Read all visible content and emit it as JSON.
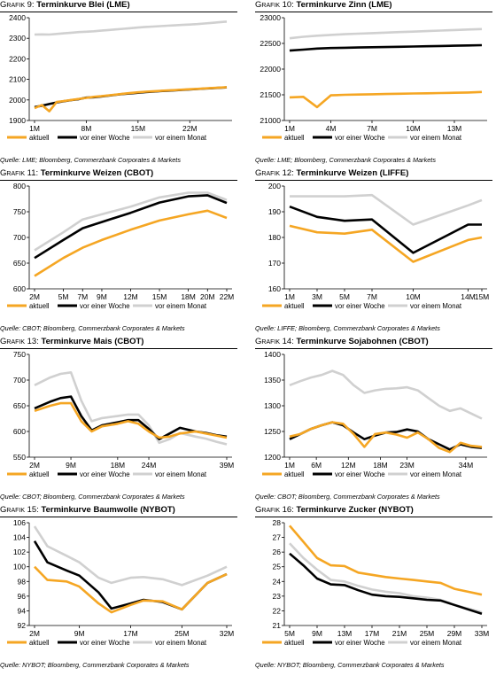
{
  "panels": [
    {
      "title_prefix": "Grafik 9:",
      "title_main": "Terminkurve Blei (LME)",
      "source": "Quelle: LME; Bloomberg, Commerzbank Corporates & Markets",
      "colors": {
        "aktuell": "#f5a623",
        "woche": "#000000",
        "monat": "#d0d0d0"
      },
      "chart_data": {
        "type": "line",
        "x": [
          1,
          2,
          3,
          4,
          5,
          6,
          7,
          8,
          9,
          10,
          11,
          12,
          13,
          14,
          15,
          16,
          17,
          18,
          19,
          20,
          21,
          22,
          23,
          24,
          25,
          26,
          27
        ],
        "x_ticks": [
          1,
          8,
          15,
          22
        ],
        "x_tick_labels": [
          "1M",
          "8M",
          "15M",
          "22M"
        ],
        "ylim": [
          1900,
          2400
        ],
        "y_ticks": [
          1900,
          2000,
          2100,
          2200,
          2300,
          2400
        ],
        "series": [
          {
            "name": "aktuell",
            "values": [
              1960,
              1975,
              1945,
              1990,
              1995,
              2000,
              2005,
              2010,
              2015,
              2018,
              2022,
              2026,
              2030,
              2034,
              2037,
              2040,
              2042,
              2044,
              2046,
              2048,
              2050,
              2052,
              2054,
              2056,
              2058,
              2060,
              2062
            ]
          },
          {
            "name": "vor einer Woche",
            "values": [
              1965,
              1972,
              1980,
              1988,
              1994,
              1999,
              2004,
              2011,
              2013,
              2017,
              2021,
              2025,
              2029,
              2032,
              2035,
              2038,
              2040,
              2043,
              2045,
              2047,
              2049,
              2051,
              2053,
              2055,
              2057,
              2059,
              2061
            ]
          },
          {
            "name": "vor einem Monat",
            "values": [
              2318,
              2319,
              2318,
              2321,
              2324,
              2327,
              2330,
              2332,
              2334,
              2337,
              2340,
              2343,
              2346,
              2349,
              2352,
              2355,
              2357,
              2359,
              2361,
              2363,
              2365,
              2367,
              2369,
              2372,
              2375,
              2378,
              2381
            ]
          }
        ]
      }
    },
    {
      "title_prefix": "Grafik 10:",
      "title_main": "Terminkurve Zinn (LME)",
      "source": "Quelle: LME; Bloomberg, Commerzbank Corporates & Markets",
      "colors": {
        "aktuell": "#f5a623",
        "woche": "#000000",
        "monat": "#d0d0d0"
      },
      "chart_data": {
        "type": "line",
        "x": [
          1,
          2,
          3,
          4,
          5,
          6,
          7,
          8,
          9,
          10,
          11,
          12,
          13,
          14,
          15
        ],
        "x_ticks": [
          1,
          4,
          7,
          10,
          13
        ],
        "x_tick_labels": [
          "1M",
          "4M",
          "7M",
          "10M",
          "13M"
        ],
        "ylim": [
          21000,
          23000
        ],
        "y_ticks": [
          21000,
          21500,
          22000,
          22500,
          23000
        ],
        "series": [
          {
            "name": "aktuell",
            "values": [
              21450,
              21460,
              21260,
              21490,
              21500,
              21505,
              21510,
              21515,
              21520,
              21525,
              21530,
              21535,
              21540,
              21545,
              21555
            ]
          },
          {
            "name": "vor einer Woche",
            "values": [
              22360,
              22380,
              22400,
              22410,
              22415,
              22420,
              22425,
              22430,
              22435,
              22440,
              22445,
              22450,
              22455,
              22460,
              22465
            ]
          },
          {
            "name": "vor einem Monat",
            "values": [
              22600,
              22630,
              22650,
              22665,
              22680,
              22690,
              22700,
              22710,
              22720,
              22730,
              22740,
              22750,
              22760,
              22770,
              22780
            ]
          }
        ]
      }
    },
    {
      "title_prefix": "Grafik 11:",
      "title_main": "Terminkurve Weizen (CBOT)",
      "source": "Quelle: CBOT; Bloomberg, Commerzbank Corporates & Markets",
      "colors": {
        "aktuell": "#f5a623",
        "woche": "#000000",
        "monat": "#d0d0d0"
      },
      "chart_data": {
        "type": "line",
        "x": [
          2,
          5,
          7,
          9,
          12,
          15,
          18,
          20,
          22
        ],
        "x_ticks": [
          2,
          5,
          7,
          9,
          12,
          15,
          18,
          20,
          22
        ],
        "x_tick_labels": [
          "2M",
          "5M",
          "7M",
          "9M",
          "12M",
          "15M",
          "18M",
          "20M",
          "22M"
        ],
        "ylim": [
          600,
          800
        ],
        "y_ticks": [
          600,
          650,
          700,
          750,
          800
        ],
        "series": [
          {
            "name": "aktuell",
            "values": [
              625,
              660,
              680,
              695,
              715,
              733,
              745,
              752,
              738
            ]
          },
          {
            "name": "vor einer Woche",
            "values": [
              660,
              695,
              718,
              730,
              748,
              768,
              780,
              782,
              767
            ]
          },
          {
            "name": "vor einem Monat",
            "values": [
              675,
              710,
              735,
              745,
              760,
              778,
              787,
              787,
              773
            ]
          }
        ]
      }
    },
    {
      "title_prefix": "Grafik 12:",
      "title_main": "Terminkurve Weizen (LIFFE)",
      "source": "Quelle: LIFFE; Bloomberg, Commerzbank Corporates & Markets",
      "colors": {
        "aktuell": "#f5a623",
        "woche": "#000000",
        "monat": "#d0d0d0"
      },
      "chart_data": {
        "type": "line",
        "x": [
          1,
          3,
          5,
          7,
          10,
          14,
          15
        ],
        "x_ticks": [
          1,
          3,
          5,
          7,
          10,
          14,
          15
        ],
        "x_tick_labels": [
          "1M",
          "3M",
          "5M",
          "7M",
          "10M",
          "14M",
          "15M"
        ],
        "ylim": [
          160,
          200
        ],
        "y_ticks": [
          160,
          170,
          180,
          190,
          200
        ],
        "series": [
          {
            "name": "aktuell",
            "values": [
              184.5,
              182,
              181.5,
              183,
              170.5,
              179,
              180
            ]
          },
          {
            "name": "vor einer Woche",
            "values": [
              192,
              188,
              186.5,
              187,
              174,
              185,
              185
            ]
          },
          {
            "name": "vor einem Monat",
            "values": [
              196,
              196,
              196,
              196.5,
              185,
              192.5,
              194.5
            ]
          }
        ]
      }
    },
    {
      "title_prefix": "Grafik 13:",
      "title_main": "Terminkurve Mais (CBOT)",
      "source": "Quelle: CBOT; Bloomberg, Commerzbank Corporates & Markets",
      "colors": {
        "aktuell": "#f5a623",
        "woche": "#000000",
        "monat": "#d0d0d0"
      },
      "chart_data": {
        "type": "line",
        "x": [
          2,
          5,
          7,
          9,
          11,
          13,
          15,
          18,
          20,
          22,
          24,
          26,
          28,
          30,
          33,
          35,
          37,
          39
        ],
        "x_ticks": [
          2,
          9,
          18,
          24,
          39
        ],
        "x_tick_labels": [
          "2M",
          "9M",
          "18M",
          "24M",
          "39M"
        ],
        "ylim": [
          550,
          750
        ],
        "y_ticks": [
          550,
          600,
          650,
          700,
          750
        ],
        "series": [
          {
            "name": "aktuell",
            "values": [
              640,
              650,
              655,
              655,
              620,
              600,
              610,
              615,
              620,
              615,
              600,
              588,
              590,
              596,
              600,
              596,
              592,
              588
            ]
          },
          {
            "name": "vor einer Woche",
            "values": [
              645,
              658,
              665,
              668,
              630,
              602,
              612,
              618,
              622,
              622,
              605,
              585,
              596,
              607,
              600,
              597,
              593,
              590
            ]
          },
          {
            "name": "vor einem Monat",
            "values": [
              690,
              705,
              712,
              715,
              660,
              620,
              626,
              630,
              633,
              633,
              612,
              578,
              585,
              597,
              590,
              586,
              580,
              575
            ]
          }
        ]
      }
    },
    {
      "title_prefix": "Grafik 14:",
      "title_main": "Terminkurve Sojabohnen (CBOT)",
      "source": "Quelle: CBOT; Bloomberg, Commerzbank Corporates & Markets",
      "colors": {
        "aktuell": "#f5a623",
        "woche": "#000000",
        "monat": "#d0d0d0"
      },
      "chart_data": {
        "type": "line",
        "x": [
          1,
          3,
          5,
          7,
          9,
          11,
          13,
          15,
          17,
          19,
          21,
          23,
          25,
          27,
          29,
          31,
          33,
          35,
          37
        ],
        "x_ticks": [
          1,
          6,
          12,
          18,
          23,
          34
        ],
        "x_tick_labels": [
          "1M",
          "6M",
          "12M",
          "18M",
          "23M",
          "34M"
        ],
        "ylim": [
          1200,
          1400
        ],
        "y_ticks": [
          1200,
          1250,
          1300,
          1350,
          1400
        ],
        "series": [
          {
            "name": "aktuell",
            "values": [
              1240,
              1245,
              1255,
              1262,
              1268,
              1265,
              1245,
              1220,
              1245,
              1248,
              1244,
              1238,
              1248,
              1235,
              1218,
              1210,
              1228,
              1222,
              1220
            ]
          },
          {
            "name": "vor einer Woche",
            "values": [
              1235,
              1245,
              1255,
              1262,
              1268,
              1262,
              1248,
              1235,
              1242,
              1248,
              1249,
              1254,
              1250,
              1235,
              1225,
              1215,
              1225,
              1220,
              1218
            ]
          },
          {
            "name": "vor einem Monat",
            "values": [
              1340,
              1348,
              1355,
              1360,
              1368,
              1360,
              1340,
              1325,
              1330,
              1333,
              1334,
              1336,
              1330,
              1315,
              1300,
              1290,
              1295,
              1285,
              1275
            ]
          }
        ]
      }
    },
    {
      "title_prefix": "Grafik 15:",
      "title_main": "Terminkurve Baumwolle (NYBOT)",
      "source": "Quelle: NYBOT; Bloomberg, Commerzbank Corporates & Markets",
      "colors": {
        "aktuell": "#f5a623",
        "woche": "#000000",
        "monat": "#d0d0d0"
      },
      "chart_data": {
        "type": "line",
        "x": [
          2,
          4,
          7,
          9,
          12,
          14,
          17,
          19,
          22,
          25,
          29,
          32
        ],
        "x_ticks": [
          2,
          9,
          17,
          25,
          32
        ],
        "x_tick_labels": [
          "2M",
          "9M",
          "17M",
          "25M",
          "32M"
        ],
        "ylim": [
          92,
          106
        ],
        "y_ticks": [
          92,
          94,
          96,
          98,
          100,
          102,
          104,
          106
        ],
        "series": [
          {
            "name": "aktuell",
            "values": [
              100,
              98.2,
              98,
              97.3,
              95,
              93.8,
              94.8,
              95.4,
              95.3,
              94.2,
              97.8,
              99
            ]
          },
          {
            "name": "vor einer Woche",
            "values": [
              103.5,
              100.6,
              99.5,
              98.8,
              96.5,
              94.3,
              95,
              95.5,
              95.2,
              94.2,
              97.8,
              99
            ]
          },
          {
            "name": "vor einem Monat",
            "values": [
              105.5,
              102.8,
              101.5,
              100.6,
              98.5,
              97.8,
              98.5,
              98.6,
              98.3,
              97.5,
              98.8,
              100
            ]
          }
        ]
      }
    },
    {
      "title_prefix": "Grafik 16:",
      "title_main": "Terminkurve Zucker (NYBOT)",
      "source": "Quelle: NYBOT; Bloomberg, Commerzbank Corporates & Markets",
      "colors": {
        "aktuell": "#f5a623",
        "woche": "#000000",
        "monat": "#d0d0d0"
      },
      "chart_data": {
        "type": "line",
        "x": [
          5,
          7,
          9,
          11,
          13,
          15,
          17,
          19,
          21,
          23,
          25,
          27,
          29,
          31,
          33
        ],
        "x_ticks": [
          5,
          9,
          13,
          17,
          21,
          25,
          29,
          33
        ],
        "x_tick_labels": [
          "5M",
          "9M",
          "13M",
          "17M",
          "21M",
          "25M",
          "29M",
          "33M"
        ],
        "ylim": [
          21,
          28
        ],
        "y_ticks": [
          21,
          22,
          23,
          24,
          25,
          26,
          27,
          28
        ],
        "series": [
          {
            "name": "aktuell",
            "values": [
              27.8,
              26.7,
              25.6,
              25.1,
              25.05,
              24.6,
              24.45,
              24.3,
              24.2,
              24.1,
              24.0,
              23.9,
              23.5,
              23.3,
              23.1
            ]
          },
          {
            "name": "vor einer Woche",
            "values": [
              25.9,
              25.1,
              24.2,
              23.8,
              23.75,
              23.4,
              23.1,
              23.0,
              22.95,
              22.85,
              22.75,
              22.7,
              22.4,
              22.1,
              21.8
            ]
          },
          {
            "name": "vor einem Monat",
            "values": [
              26.6,
              25.6,
              24.8,
              24.1,
              24.0,
              23.7,
              23.45,
              23.3,
              23.2,
              23.0,
              22.9,
              22.75,
              22.4,
              22.15,
              21.9
            ]
          }
        ]
      }
    }
  ]
}
